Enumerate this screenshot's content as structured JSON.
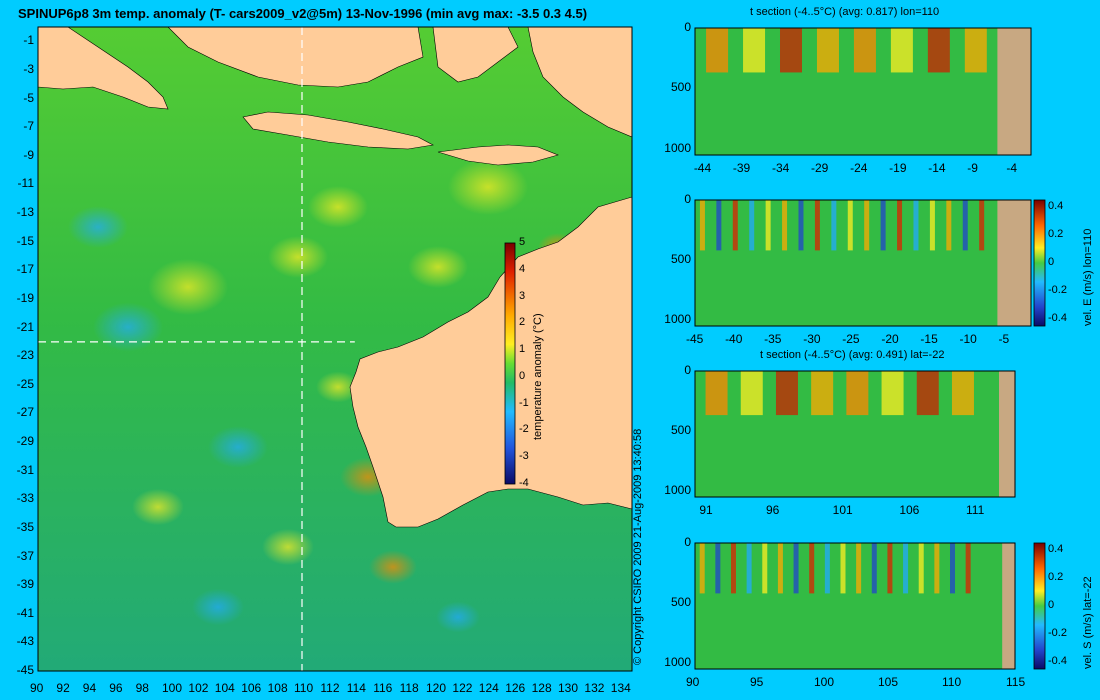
{
  "main_map": {
    "title": "SPINUP6p8 3m temp. anomaly (T- cars2009_v2@5m) 13-Nov-1996 (min avg max: -3.5 0.3 4.5)",
    "lon_ticks": [
      90,
      92,
      94,
      96,
      98,
      100,
      102,
      104,
      106,
      108,
      110,
      112,
      114,
      116,
      118,
      120,
      122,
      124,
      126,
      128,
      130,
      132,
      134
    ],
    "lat_ticks": [
      -1,
      -3,
      -5,
      -7,
      -9,
      -11,
      -13,
      -15,
      -17,
      -19,
      -21,
      -23,
      -25,
      -27,
      -29,
      -31,
      -33,
      -35,
      -37,
      -39,
      -41,
      -43,
      -45
    ],
    "xlim": [
      90,
      135
    ],
    "ylim": [
      -45,
      0
    ],
    "section_lon": 110,
    "section_lat": -22,
    "colorbar": {
      "label": "temperature anomaly (°C)",
      "ticks": [
        "5",
        "4",
        "3",
        "2",
        "1",
        "0",
        "-1",
        "-2",
        "-3",
        "-4"
      ],
      "range": [
        -4,
        5
      ]
    }
  },
  "copyright": "© Copyright CSIRO 2009   21-Aug-2009 13:40:58",
  "colors": {
    "background": "#00ccff",
    "land": "#ffcc99",
    "section_land": "#c8a882",
    "ocean": "#22bb44"
  },
  "chart_data": [
    {
      "type": "heatmap",
      "title": "t section (-4..5°C) (avg: 0.817) lon=110",
      "x_ticks": [
        "-44",
        "-39",
        "-34",
        "-29",
        "-24",
        "-19",
        "-14",
        "-9",
        "-4"
      ],
      "y_ticks": [
        "0",
        "500",
        "1000"
      ],
      "xlim": [
        -45,
        -2
      ],
      "ylim": [
        1050,
        0
      ]
    },
    {
      "type": "heatmap",
      "title": "",
      "x_ticks": [
        "-45",
        "-40",
        "-35",
        "-30",
        "-25",
        "-20",
        "-15",
        "-10",
        "-5"
      ],
      "y_ticks": [
        "0",
        "500",
        "1000"
      ],
      "xlim": [
        -45,
        -2
      ],
      "ylim": [
        1050,
        0
      ],
      "colorbar": {
        "label": "vel. E (m/s) lon=110",
        "ticks": [
          "0.4",
          "0.2",
          "0",
          "-0.2",
          "-0.4"
        ],
        "range": [
          -0.45,
          0.45
        ]
      }
    },
    {
      "type": "heatmap",
      "title": "t section (-4..5°C) (avg: 0.491) lat=-22",
      "x_ticks": [
        "91",
        "96",
        "101",
        "106",
        "111"
      ],
      "y_ticks": [
        "0",
        "500",
        "1000"
      ],
      "xlim": [
        90,
        114
      ],
      "ylim": [
        1050,
        0
      ]
    },
    {
      "type": "heatmap",
      "title": "",
      "x_ticks": [
        "90",
        "95",
        "100",
        "105",
        "110",
        "115"
      ],
      "y_ticks": [
        "0",
        "500",
        "1000"
      ],
      "xlim": [
        90,
        115
      ],
      "ylim": [
        1050,
        0
      ],
      "colorbar": {
        "label": "vel. S (m/s) lat=-22",
        "ticks": [
          "0.4",
          "0.2",
          "0",
          "-0.2",
          "-0.4"
        ],
        "range": [
          -0.45,
          0.45
        ]
      }
    }
  ]
}
